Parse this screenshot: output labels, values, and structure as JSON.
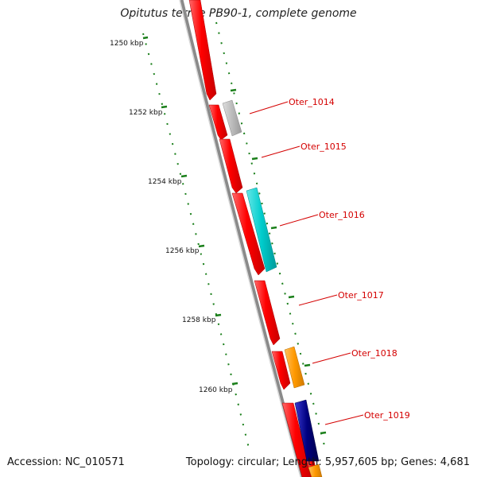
{
  "title": "Opitutus terrae PB90-1, complete genome",
  "accession": "Accession: NC_010571",
  "summary": "Topology: circular; Length: 5,957,605 bp; Genes: 4,681",
  "ticks": [
    {
      "label": "1250 kbp"
    },
    {
      "label": "1252 kbp"
    },
    {
      "label": "1254 kbp"
    },
    {
      "label": "1256 kbp"
    },
    {
      "label": "1258 kbp"
    },
    {
      "label": "1260 kbp"
    }
  ],
  "genes": [
    {
      "label": "Oter_1014"
    },
    {
      "label": "Oter_1015"
    },
    {
      "label": "Oter_1016"
    },
    {
      "label": "Oter_1017"
    },
    {
      "label": "Oter_1018"
    },
    {
      "label": "Oter_1019"
    }
  ],
  "colors": {
    "cds": "#ff0000",
    "gray_feature": "#b8b8b8",
    "cyan_feature": "#00cccc",
    "orange_feature": "#ff9900",
    "navy_feature": "#000080",
    "tick": "#1a7f1a",
    "backbone": "#8a8a8a",
    "label": "#d40000"
  }
}
